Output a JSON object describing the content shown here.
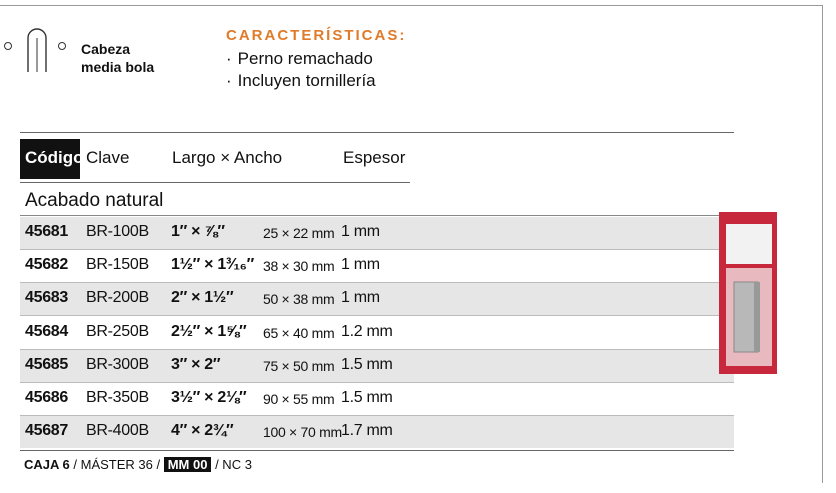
{
  "header": {
    "icon_label": [
      "Cabeza",
      "media bola"
    ],
    "features_title": "CARACTERÍSTICAS:",
    "features": [
      "Perno remachado",
      "Incluyen tornillería"
    ]
  },
  "table": {
    "columns": [
      "Código",
      "Clave",
      "Largo × Ancho",
      "Espesor"
    ],
    "section": "Acabado natural",
    "rows": [
      [
        "45681",
        "BR-100B",
        "1″ × ⅞″",
        "25 × 22 mm",
        "1 mm"
      ],
      [
        "45682",
        "BR-150B",
        "1½″ × 1³⁄₁₆″",
        "38 × 30 mm",
        "1 mm"
      ],
      [
        "45683",
        "BR-200B",
        "2″ × 1½″",
        "50 × 38 mm",
        "1 mm"
      ],
      [
        "45684",
        "BR-250B",
        "2½″ × 1⅝″",
        "65 × 40 mm",
        "1.2 mm"
      ],
      [
        "45685",
        "BR-300B",
        "3″ × 2″",
        "75 × 50 mm",
        "1.5 mm"
      ],
      [
        "45686",
        "BR-350B",
        "3½″ × 2⅛″",
        "90 × 55 mm",
        "1.5 mm"
      ],
      [
        "45687",
        "BR-400B",
        "4″ × 2¾″",
        "100 × 70 mm",
        "1.7 mm"
      ]
    ]
  },
  "footer": {
    "caja": "CAJA 6",
    "master": "/ MÁSTER 36 /",
    "mm": "MM 00",
    "nc": "/ NC 3"
  }
}
